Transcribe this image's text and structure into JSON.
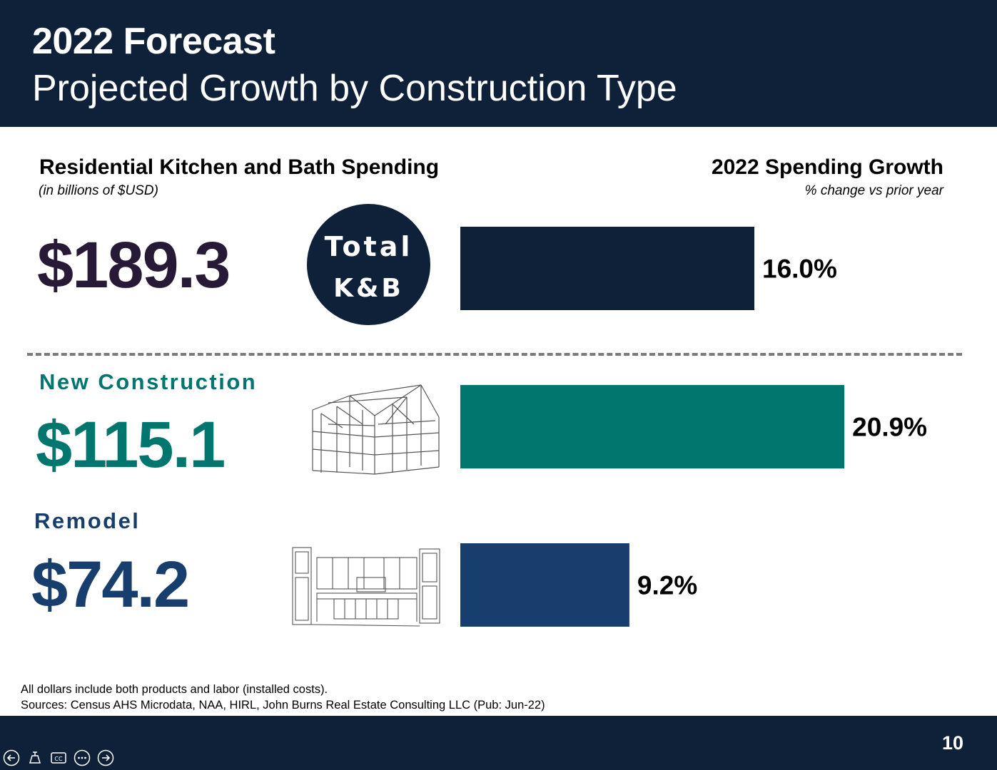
{
  "header": {
    "title": "2022 Forecast",
    "subtitle": "Projected Growth by Construction Type"
  },
  "left_panel": {
    "heading": "Residential Kitchen and Bath Spending",
    "subheading": "(in billions of $USD)"
  },
  "right_panel": {
    "heading": "2022 Spending Growth",
    "subheading": "% change vs prior year"
  },
  "segments": {
    "total": {
      "value": "$189.3",
      "badge_line1": "Total",
      "badge_line2": "K&B"
    },
    "new_construction": {
      "label": "New Construction",
      "value": "$115.1",
      "illustration": "timber-frame-house-sketch"
    },
    "remodel": {
      "label": "Remodel",
      "value": "$74.2",
      "illustration": "kitchen-cabinets-sketch"
    }
  },
  "chart_data": {
    "type": "bar",
    "orientation": "horizontal",
    "categories": [
      "Total K&B",
      "New Construction",
      "Remodel"
    ],
    "values": [
      16.0,
      20.9,
      9.2
    ],
    "value_labels": [
      "16.0%",
      "20.9%",
      "9.2%"
    ],
    "colors": [
      "#0f2138",
      "#00766f",
      "#173e6c"
    ],
    "title": "2022 Spending Growth",
    "subtitle": "% change vs prior year",
    "axis_visible": false,
    "grid": false
  },
  "colors": {
    "navy": "#0f2138",
    "teal": "#00766f",
    "blue": "#173e6c",
    "total_value_color": "#261a36"
  },
  "footnotes": [
    "All dollars include both products and labor (installed costs).",
    "Sources: Census AHS Microdata, NAA, HIRL, John Burns Real Estate Consulting LLC (Pub: Jun-22)"
  ],
  "footer": {
    "page_number": "10"
  },
  "nav": [
    "previous-icon",
    "pointer-icon",
    "captions-icon",
    "more-icon",
    "next-icon"
  ]
}
